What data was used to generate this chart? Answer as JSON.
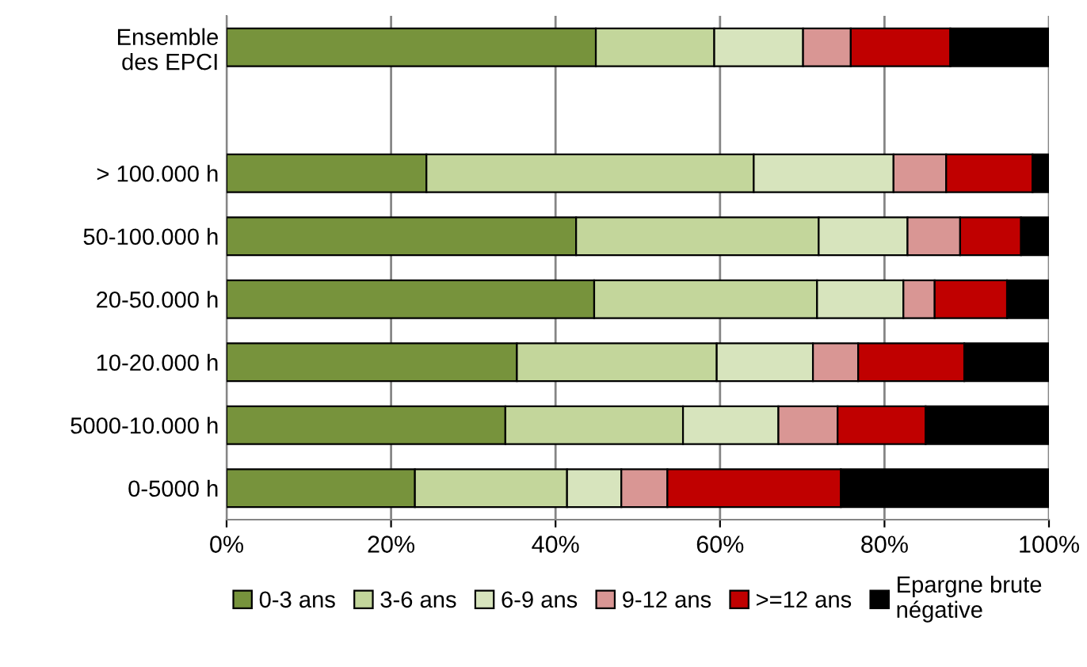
{
  "chart_data": {
    "type": "bar",
    "orientation": "horizontal",
    "stacked": true,
    "categories": [
      "Ensemble\ndes EPCI",
      null,
      "> 100.000 h",
      "50-100.000 h",
      "20-50.000 h",
      "10-20.000 h",
      "5000-10.000 h",
      "0-5000 h"
    ],
    "series": [
      {
        "name": "0-3 ans",
        "color": "#77933c",
        "values": [
          44.9,
          null,
          24.3,
          42.5,
          44.7,
          35.3,
          33.9,
          22.9
        ]
      },
      {
        "name": "3-6 ans",
        "color": "#c3d69b",
        "values": [
          14.4,
          null,
          39.8,
          29.5,
          27.1,
          24.3,
          21.6,
          18.5
        ]
      },
      {
        "name": "6-9 ans",
        "color": "#d7e4bd",
        "values": [
          10.8,
          null,
          17.0,
          10.8,
          10.5,
          11.7,
          11.6,
          6.6
        ]
      },
      {
        "name": "9-12 ans",
        "color": "#d99694",
        "values": [
          5.8,
          null,
          6.4,
          6.4,
          3.8,
          5.5,
          7.2,
          5.6
        ]
      },
      {
        "name": ">=12 ans",
        "color": "#c00000",
        "values": [
          12.1,
          null,
          10.5,
          7.4,
          8.8,
          12.9,
          10.7,
          21.1
        ]
      },
      {
        "name": "Epargne brute\nnégative",
        "color": "#000000",
        "values": [
          12.0,
          null,
          2.0,
          3.4,
          5.1,
          10.3,
          15.0,
          25.3
        ]
      }
    ],
    "xlim": [
      0,
      100
    ],
    "xticks": [
      {
        "value": 0,
        "label": "0%"
      },
      {
        "value": 20,
        "label": "20%"
      },
      {
        "value": 40,
        "label": "40%"
      },
      {
        "value": 60,
        "label": "60%"
      },
      {
        "value": 80,
        "label": "80%"
      },
      {
        "value": 100,
        "label": "100%"
      }
    ],
    "grid": "x",
    "legend": "bottom"
  }
}
